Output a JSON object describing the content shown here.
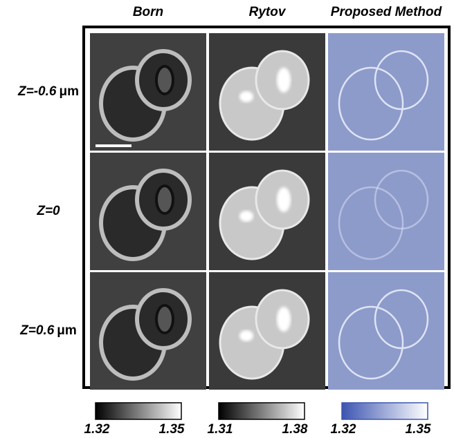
{
  "columns": [
    "Born",
    "Rytov",
    "Proposed Method"
  ],
  "rows": [
    {
      "z": "Z=-0.6",
      "unit": "μm"
    },
    {
      "z": "Z=0"
    },
    {
      "z": "Z=0.6",
      "unit": "μm"
    }
  ],
  "colorbars": [
    {
      "min": "1.32",
      "max": "1.35"
    },
    {
      "min": "1.31",
      "max": "1.38"
    },
    {
      "min": "1.32",
      "max": "1.35"
    }
  ]
}
